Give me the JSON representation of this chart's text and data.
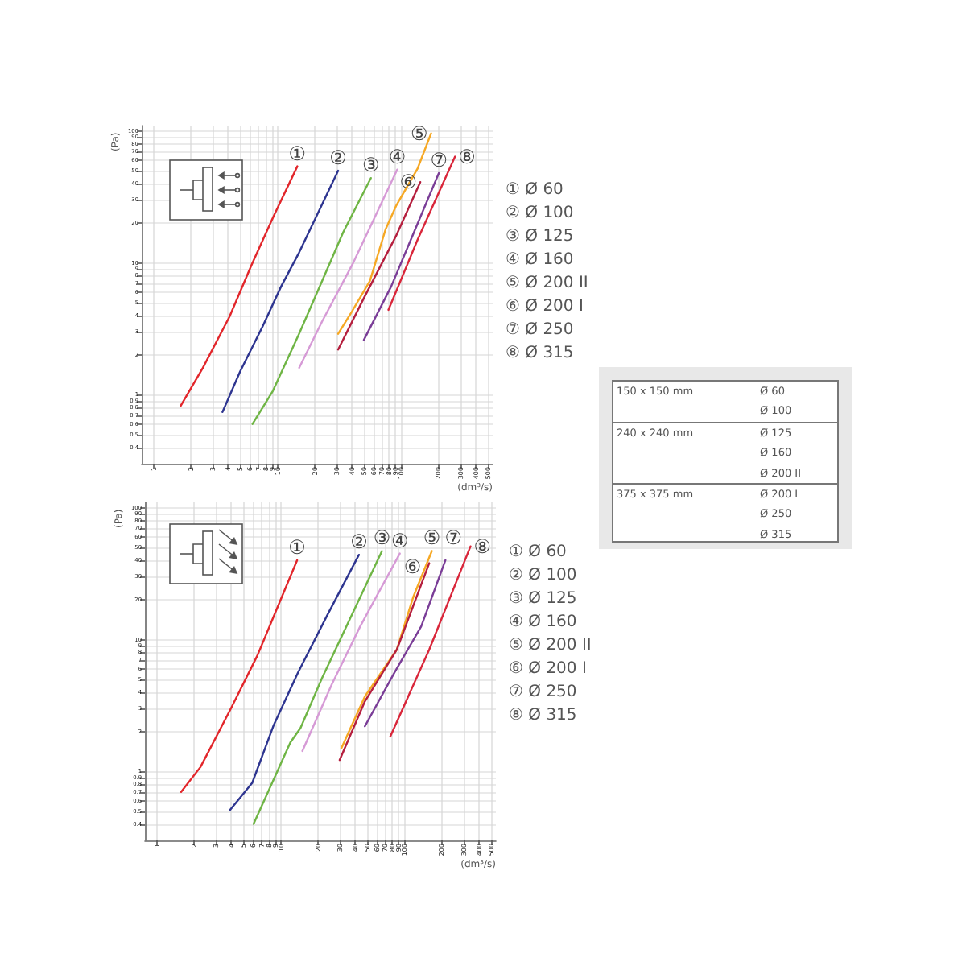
{
  "chart_data": [
    {
      "type": "line",
      "xlabel": "(dm³/s)",
      "ylabel": "(Pa)",
      "log": "xy",
      "grid": true,
      "xlim": [
        0.8,
        550
      ],
      "ylim": [
        0.3,
        110
      ],
      "xticks": [
        1,
        2,
        3,
        4,
        5,
        6,
        7,
        8,
        9,
        10,
        20,
        30,
        40,
        50,
        60,
        70,
        80,
        90,
        100,
        200,
        300,
        400,
        500
      ],
      "yticks": [
        0.4,
        0.5,
        0.6,
        0.7,
        0.8,
        0.9,
        1,
        2,
        3,
        4,
        5,
        6,
        7,
        8,
        9,
        10,
        20,
        30,
        40,
        50,
        60,
        70,
        80,
        90,
        100
      ],
      "annotations": [
        "① Ø 60",
        "② Ø 100",
        "③ Ø 125",
        "④ Ø 160",
        "⑤ Ø 200 II",
        "⑥ Ø 200 I",
        "⑦ Ø 250",
        "⑧ Ø 315"
      ],
      "series": [
        {
          "name": "①",
          "color": "#e2262b",
          "x": [
            1.65,
            2.5,
            4.1,
            6.2,
            9.2,
            14.5
          ],
          "values": [
            0.82,
            1.6,
            3.9,
            9.7,
            22,
            54
          ]
        },
        {
          "name": "②",
          "color": "#2e3590",
          "x": [
            3.6,
            5,
            7.6,
            10.7,
            15,
            31
          ],
          "values": [
            0.74,
            1.5,
            3.3,
            6.6,
            12,
            50
          ]
        },
        {
          "name": "③",
          "color": "#6fb545",
          "x": [
            6.3,
            9.2,
            15,
            23,
            34,
            57
          ],
          "values": [
            0.6,
            1.07,
            2.9,
            7.3,
            17,
            44
          ]
        },
        {
          "name": "④",
          "color": "#d69ad6",
          "x": [
            15,
            23,
            41,
            61,
            93
          ],
          "values": [
            1.6,
            3.6,
            10,
            22,
            51
          ]
        },
        {
          "name": "⑤",
          "color": "#f6a824",
          "x": [
            31,
            39,
            56,
            75,
            91,
            136,
            175
          ],
          "values": [
            2.9,
            4.1,
            7.3,
            18,
            27,
            52,
            96
          ]
        },
        {
          "name": "⑥",
          "color": "#b51f3e",
          "x": [
            31,
            50,
            91,
            143
          ],
          "values": [
            2.2,
            5.4,
            16,
            41
          ]
        },
        {
          "name": "⑦",
          "color": "#7a3d97",
          "x": [
            50,
            83,
            202
          ],
          "values": [
            2.6,
            6.6,
            48
          ]
        },
        {
          "name": "⑧",
          "color": "#d9263a",
          "x": [
            79,
            136,
            273
          ],
          "values": [
            4.4,
            15,
            64
          ]
        }
      ]
    },
    {
      "type": "line",
      "xlabel": "(dm³/s)",
      "ylabel": "(Pa)",
      "log": "xy",
      "grid": true,
      "xlim": [
        0.8,
        550
      ],
      "ylim": [
        0.3,
        110
      ],
      "xticks": [
        1,
        2,
        3,
        4,
        5,
        6,
        7,
        8,
        9,
        10,
        20,
        30,
        40,
        50,
        60,
        70,
        80,
        90,
        100,
        200,
        300,
        400,
        500
      ],
      "yticks": [
        0.4,
        0.5,
        0.6,
        0.7,
        0.8,
        0.9,
        1,
        2,
        3,
        4,
        5,
        6,
        7,
        8,
        9,
        10,
        20,
        30,
        40,
        50,
        60,
        70,
        80,
        90,
        100
      ],
      "annotations": [
        "① Ø 60",
        "② Ø 100",
        "③ Ø 125",
        "④ Ø 160",
        "⑤ Ø 200 II",
        "⑥ Ø 200 I",
        "⑦ Ø 250",
        "⑧ Ø 315"
      ],
      "series": [
        {
          "name": "①",
          "color": "#e2262b",
          "x": [
            1.57,
            2.25,
            4,
            6.5,
            13.6
          ],
          "values": [
            0.7,
            1.08,
            3.05,
            7.6,
            40
          ]
        },
        {
          "name": "②",
          "color": "#2e3590",
          "x": [
            3.9,
            5.9,
            8.8,
            13.8,
            24,
            43
          ],
          "values": [
            0.51,
            0.82,
            2.25,
            5.6,
            15.5,
            44
          ]
        },
        {
          "name": "③",
          "color": "#6fb545",
          "x": [
            6.05,
            12,
            14.5,
            21.6,
            66
          ],
          "values": [
            0.4,
            1.66,
            2.14,
            5.1,
            47
          ]
        },
        {
          "name": "④",
          "color": "#d69ad6",
          "x": [
            15,
            26,
            44,
            92
          ],
          "values": [
            1.43,
            4.6,
            12.6,
            45
          ]
        },
        {
          "name": "⑤",
          "color": "#f6a824",
          "x": [
            31,
            48,
            87,
            118,
            167
          ],
          "values": [
            1.5,
            3.7,
            8.4,
            21,
            47
          ]
        },
        {
          "name": "⑥",
          "color": "#b51f3e",
          "x": [
            30,
            48,
            87,
            159
          ],
          "values": [
            1.22,
            3.4,
            8.4,
            38
          ]
        },
        {
          "name": "⑦",
          "color": "#7a3d97",
          "x": [
            48,
            83,
            137,
            215
          ],
          "values": [
            2.2,
            5.6,
            12.6,
            40
          ]
        },
        {
          "name": "⑧",
          "color": "#d9263a",
          "x": [
            77,
            159,
            343
          ],
          "values": [
            1.84,
            8.4,
            51
          ]
        }
      ]
    },
    {
      "type": "other",
      "y_categories": [
        "150 x 150 mm",
        "240 x 240 mm",
        "375 x 375 mm"
      ],
      "cell_labels": [
        [
          "Ø 60",
          "Ø 100"
        ],
        [
          "Ø 125",
          "Ø 160",
          "Ø 200 II"
        ],
        [
          "Ø 200 I",
          "Ø 250",
          "Ø 315"
        ]
      ]
    }
  ]
}
